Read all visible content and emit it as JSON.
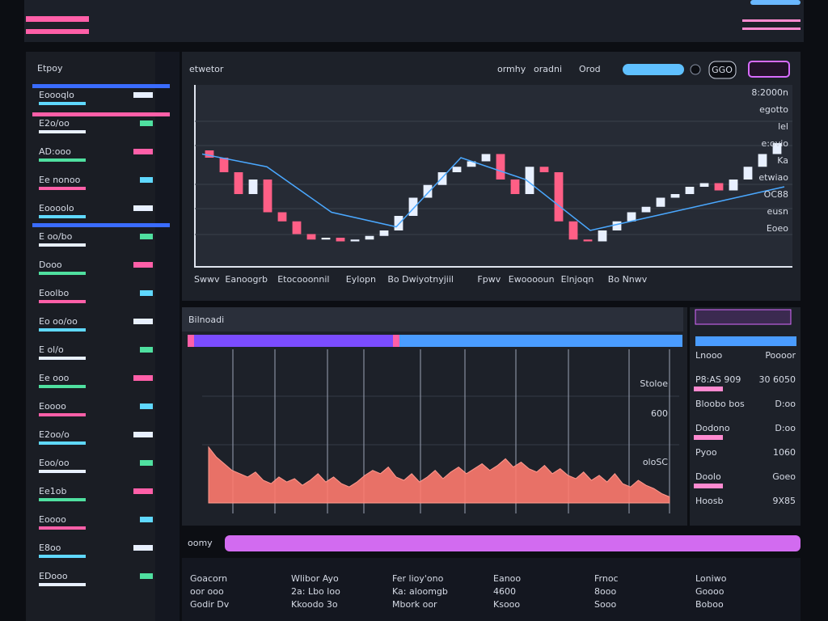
{
  "sidebar": {
    "title": "Etpoy",
    "items": [
      "Eoooqlo",
      "E2o/oo",
      "AD:ooo",
      "Ee nonoo",
      "Eoooolo",
      "E oo/bo",
      "Dooo",
      "Eoolbo",
      "Eo oo/oo",
      "E ol/o",
      "Ee ooo",
      "Eoooo",
      "E2oo/o",
      "Eoo/oo",
      "Ee1ob",
      "Eoooo",
      "E8oo",
      "EDooo"
    ]
  },
  "main": {
    "title": "etwetor",
    "nav": [
      "ormhy",
      "oradni",
      "Orod"
    ],
    "button": "GGO"
  },
  "price_chart": {
    "type": "candlestick",
    "open": [
      64,
      60,
      52,
      40,
      48,
      30,
      25,
      18,
      15,
      16,
      14,
      15,
      17,
      20,
      28,
      38,
      45,
      52,
      55,
      58,
      62,
      48,
      40,
      55,
      52,
      25,
      15,
      14,
      20,
      25,
      30,
      33,
      38,
      40,
      44,
      46,
      42,
      48,
      55,
      62
    ],
    "close": [
      60,
      52,
      40,
      48,
      30,
      25,
      18,
      15,
      16,
      14,
      15,
      17,
      20,
      28,
      38,
      45,
      52,
      55,
      58,
      62,
      48,
      40,
      55,
      52,
      25,
      15,
      14,
      20,
      25,
      30,
      33,
      38,
      40,
      44,
      46,
      42,
      48,
      55,
      62,
      68
    ],
    "up_color": "#e8f0ff",
    "down_color": "#ff5f86",
    "line": {
      "color": "#4aa8ff",
      "values": [
        62,
        55,
        30,
        22,
        60,
        48,
        20,
        28,
        36,
        44
      ]
    },
    "ylim": [
      0,
      100
    ],
    "right_labels": [
      "8:2000n",
      "egotto",
      "lel",
      "e:ovio",
      "Ka",
      "etwiao",
      "OC88",
      "eusn",
      "Eoeo"
    ],
    "legend_labels": [
      "Swwv",
      "Eanoogrb",
      "Etocooonnil",
      "Eylopn",
      "Bo Dwiyotnyjiil",
      "Fpwv",
      "Ewooooun",
      "Elnjoqn",
      "Bo Nnwv"
    ]
  },
  "volume_panel": {
    "type": "area",
    "title": "Bilnoadi",
    "color": "#ff7a6e",
    "values": [
      40,
      34,
      30,
      26,
      24,
      22,
      25,
      20,
      18,
      22,
      19,
      21,
      17,
      20,
      24,
      19,
      22,
      18,
      16,
      19,
      23,
      26,
      24,
      28,
      22,
      20,
      24,
      19,
      22,
      26,
      21,
      25,
      28,
      24,
      27,
      30,
      26,
      29,
      33,
      28,
      31,
      27,
      25,
      29,
      24,
      27,
      23,
      21,
      25,
      20,
      23,
      19,
      24,
      18,
      16,
      20,
      17,
      15,
      12,
      10
    ],
    "ylim": [
      0,
      100
    ],
    "axis_labels": [
      "Stoloe",
      "600",
      "oloSC"
    ]
  },
  "side_panel": {
    "rows": [
      [
        "Lnooo",
        "Poooor"
      ],
      [
        "P8:AS 909",
        "30 6050"
      ],
      [
        "Bloobo bos",
        "D:oo"
      ],
      [
        "Dodono",
        "D:oo"
      ],
      [
        "Pyoo",
        "1060"
      ],
      [
        "Doolo",
        "Goeo"
      ],
      [
        "Hoosb",
        "9X85"
      ]
    ]
  },
  "table": {
    "title": "oomy",
    "rows": [
      [
        "Goacorn",
        "Wlibor Ayo",
        "Fer lioy'ono",
        "Eanoo",
        "Frnoc",
        "Loniwo"
      ],
      [
        "oor ooo",
        "2a: Lbo loo",
        "Ka: aloomgb",
        "4600",
        "8ooo",
        "Goooo"
      ],
      [
        "Godir Dv",
        "Kkoodo 3o",
        "Mbork oor",
        "Ksooo",
        "Sooo",
        "Boboo"
      ]
    ]
  }
}
